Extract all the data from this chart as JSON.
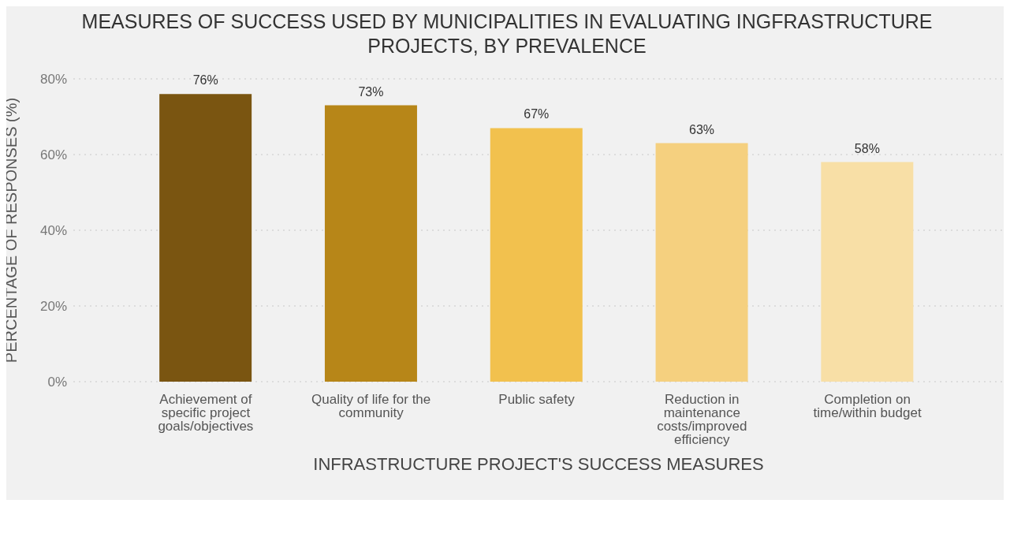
{
  "chart_data": {
    "type": "bar",
    "title": "MEASURES OF SUCCESS USED BY MUNICIPALITIES IN EVALUATING INGFRASTRUCTURE PROJECTS, BY PREVALENCE",
    "xlabel": "INFRASTRUCTURE PROJECT'S SUCCESS MEASURES",
    "ylabel": "PERCENTAGE OF RESPONSES (%)",
    "categories": [
      "Achievement of specific project goals/objectives",
      "Quality of life for the community",
      "Public safety",
      "Reduction in maintenance costs/improved efficiency",
      "Completion on time/within budget"
    ],
    "values": [
      76,
      73,
      67,
      63,
      58
    ],
    "colors": [
      "#7a5511",
      "#b78618",
      "#f2c14e",
      "#f5d07f",
      "#f8dfa6"
    ],
    "ylim": [
      0,
      80
    ],
    "yticks": [
      {
        "value": 0,
        "label": "0%"
      },
      {
        "value": 20,
        "label": "20%"
      },
      {
        "value": 40,
        "label": "40%"
      },
      {
        "value": 60,
        "label": "60%"
      },
      {
        "value": 80,
        "label": "80%"
      }
    ],
    "value_labels": [
      "76%",
      "73%",
      "67%",
      "63%",
      "58%"
    ],
    "grid": "y"
  }
}
